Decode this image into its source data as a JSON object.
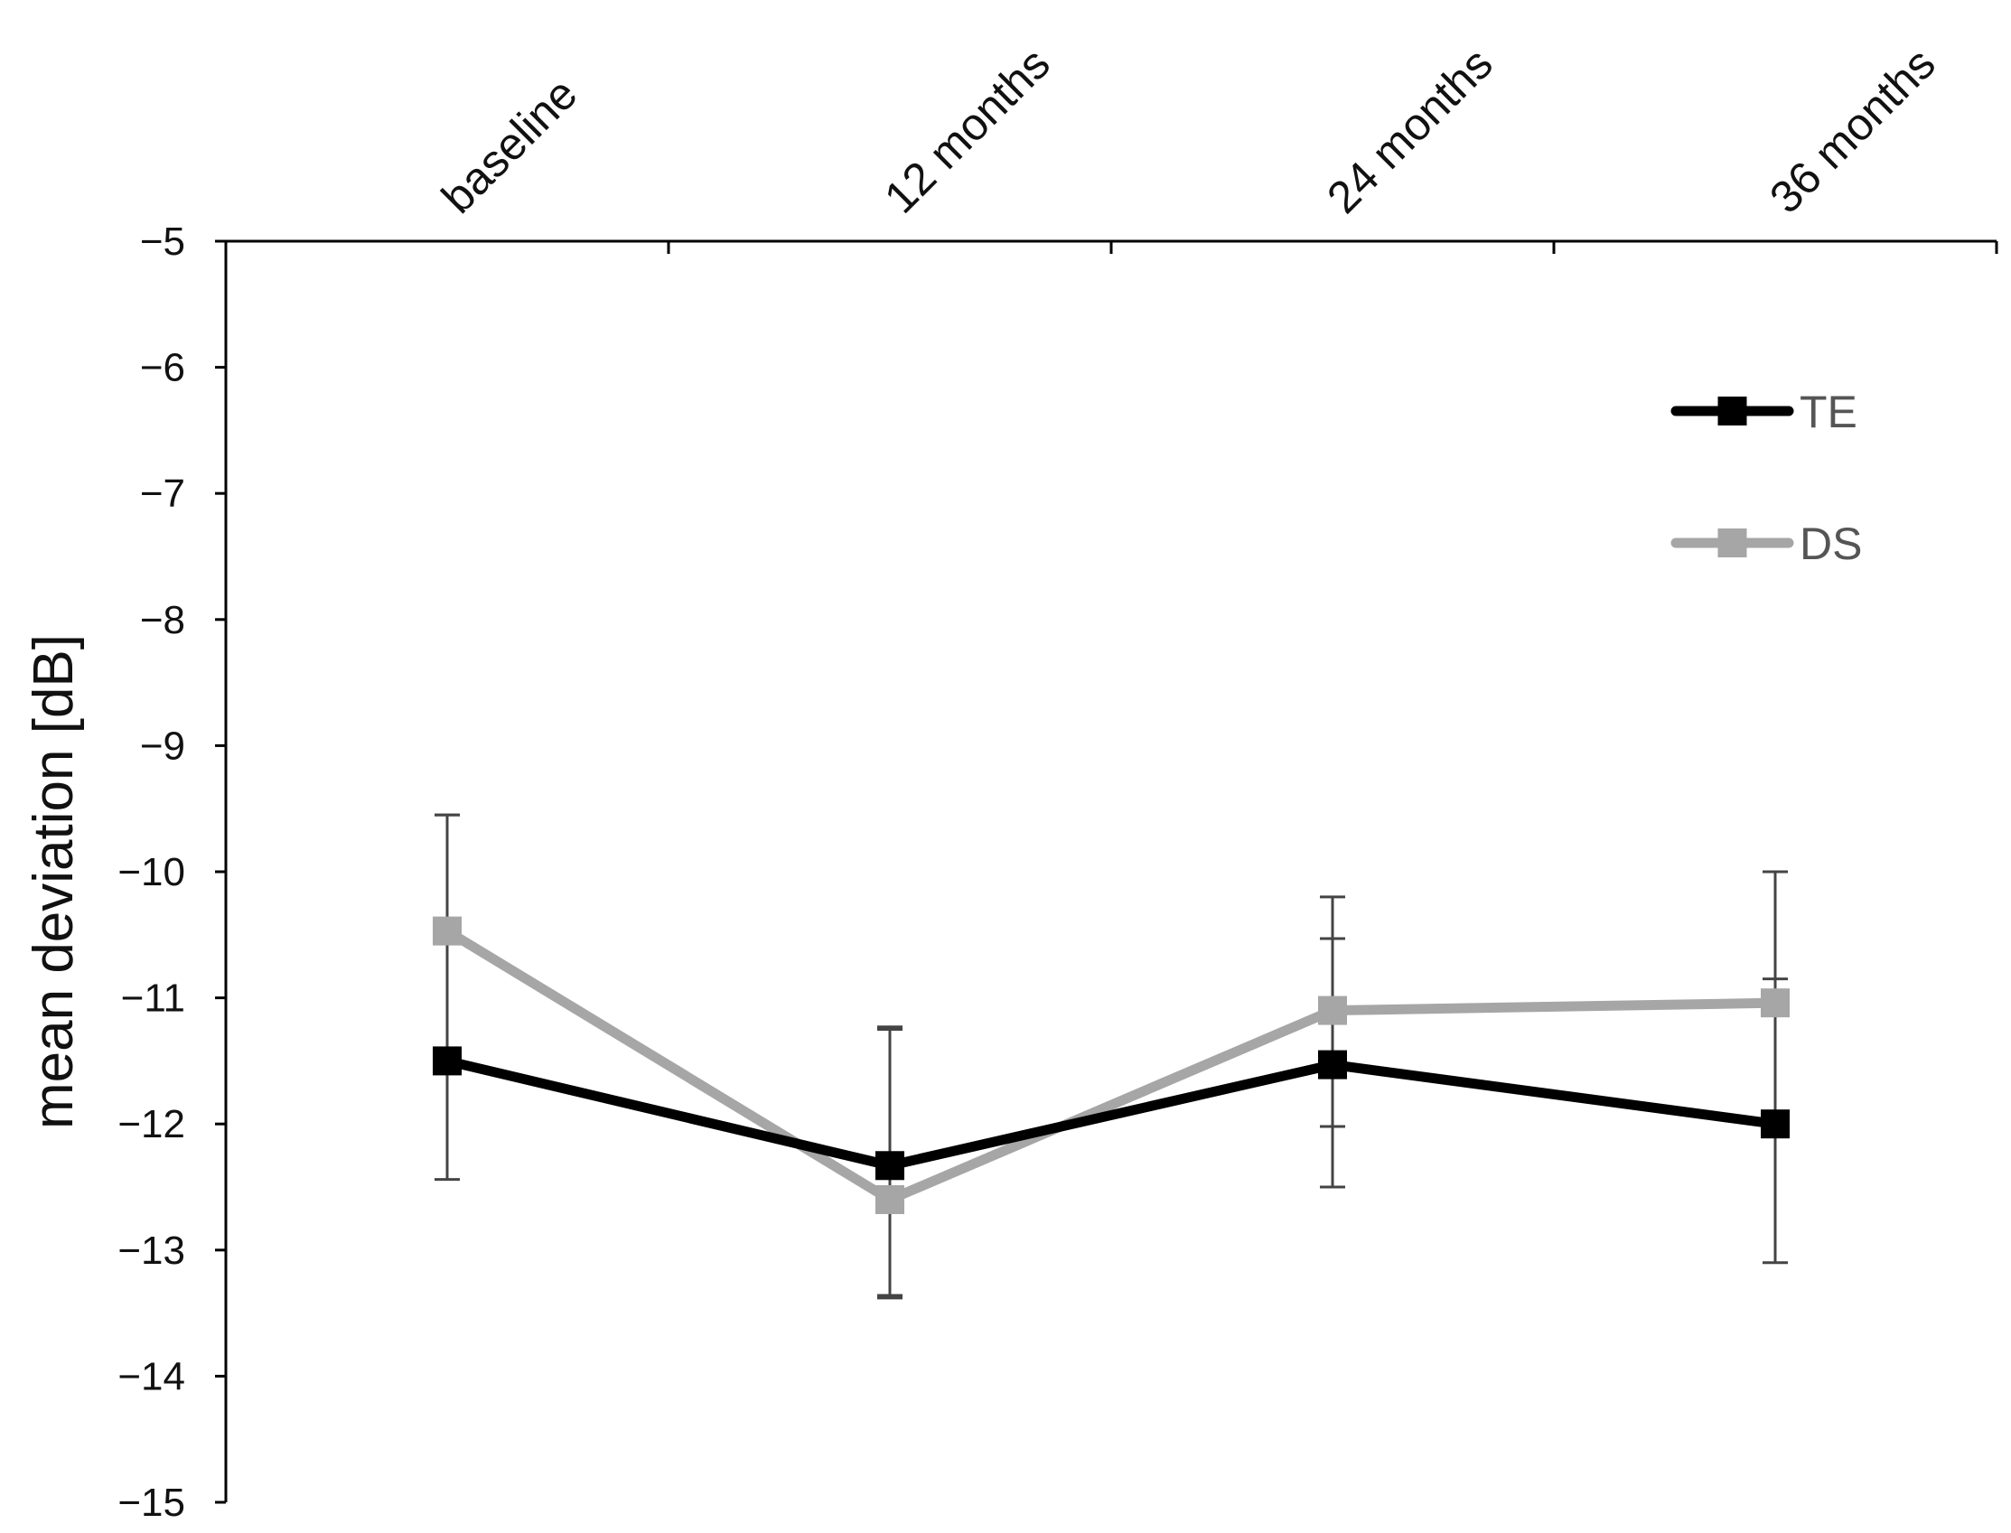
{
  "chart_data": {
    "type": "line",
    "title": "",
    "xlabel": "",
    "ylabel": "mean deviation [dB]",
    "categories": [
      "baseline",
      "12 months",
      "24 months",
      "36 months"
    ],
    "ylim": [
      -15,
      -5
    ],
    "yticks": [
      -5,
      -6,
      -7,
      -8,
      -9,
      -10,
      -11,
      -12,
      -13,
      -14,
      -15
    ],
    "ytick_labels": [
      "−5",
      "−6",
      "−7",
      "−8",
      "−9",
      "−10",
      "−11",
      "−12",
      "−13",
      "−14",
      "−15"
    ],
    "x_axis_position": "top",
    "grid": false,
    "legend_position": "top-right",
    "series": [
      {
        "name": "TE",
        "color": "#000000",
        "values": [
          -11.5,
          -12.33,
          -11.53,
          -12.0
        ],
        "error_low": [
          -12.44,
          -13.38,
          -12.5,
          -13.1
        ],
        "error_high": [
          -9.55,
          -11.23,
          -10.2,
          -10.0
        ]
      },
      {
        "name": "DS",
        "color": "#a6a6a6",
        "values": [
          -10.47,
          -12.6,
          -11.1,
          -11.04
        ],
        "error_low": [
          -11.45,
          -13.36,
          -12.02,
          -11.92
        ],
        "error_high": [
          -9.55,
          -11.25,
          -10.53,
          -10.85
        ]
      }
    ]
  }
}
